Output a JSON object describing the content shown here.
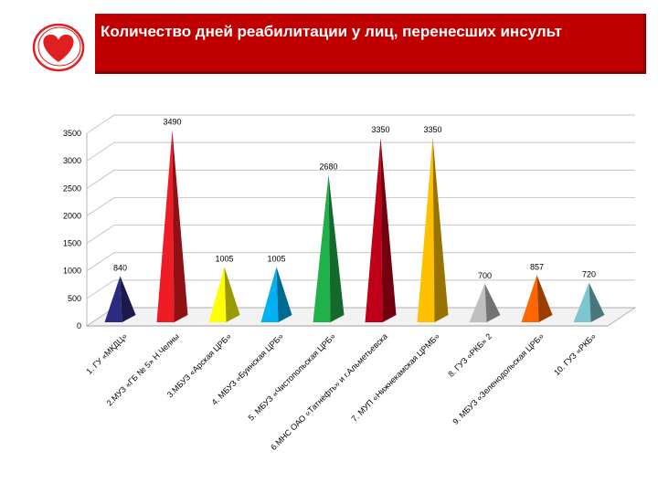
{
  "header": {
    "title": "Количество дней реабилитации у лиц, перенесших инсульт"
  },
  "logo": {
    "icon": "heart-icon",
    "color": "#e02020"
  },
  "colors": {
    "banner": "#c00000"
  },
  "chart_data": {
    "type": "bar",
    "style": "3d-pyramid",
    "title": "",
    "xlabel": "",
    "ylabel": "",
    "ylim": [
      0,
      3500
    ],
    "yticks": [
      0,
      500,
      1000,
      1500,
      2000,
      2500,
      3000,
      3500
    ],
    "grid": true,
    "legend": "none",
    "categories": [
      "1. ГУ «МКДЦ»",
      "2.МУЗ «ГБ № 5» Н.Челны",
      "3.МБУЗ «Арская ЦРБ»",
      "4. МБУЗ «Буинская ЦРБ»",
      "5. МБУЗ «Чистопольская ЦРБ»",
      "6.МНС ОАО «Татнефть» и г.Альметьевска",
      "7. МУП «Нижнекамская ЦРМБ»",
      "8. ГУЗ «РКБ» 2",
      "9. МБУЗ «Зеленодольская ЦРБ»",
      "10. ГУЗ «РКБ»"
    ],
    "values": [
      840,
      3490,
      1005,
      1005,
      2680,
      3350,
      3350,
      700,
      857,
      720
    ],
    "labels": [
      "840",
      "3490",
      "1005",
      "1005",
      "2680",
      "3350",
      "3350",
      "700",
      "857",
      "720"
    ],
    "colors": [
      "#2b2b80",
      "#ee1c24",
      "#ffff00",
      "#00b0f0",
      "#21b14b",
      "#c00018",
      "#ffc000",
      "#bfbfbf",
      "#ff6600",
      "#7cc6cf"
    ]
  }
}
